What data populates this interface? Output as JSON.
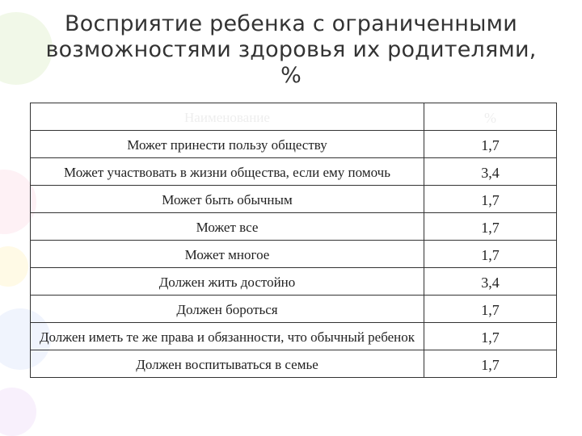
{
  "title": "Восприятие ребенка с ограниченными\nвозможностями здоровья их родителями,\n%",
  "table": {
    "header": [
      "Наименование",
      "%"
    ],
    "rows": [
      [
        "Может принести пользу обществу",
        "1,7"
      ],
      [
        "Может участвовать в жизни общества, если ему помочь",
        "3,4"
      ],
      [
        "Может быть обычным",
        "1,7"
      ],
      [
        "Может все",
        "1,7"
      ],
      [
        "Может многое",
        "1,7"
      ],
      [
        "Должен жить достойно",
        "3,4"
      ],
      [
        "Должен бороться",
        "1,7"
      ],
      [
        "Должен иметь те же права и обязанности, что обычный ребенок",
        "1,7"
      ],
      [
        "Должен воспитываться в семье",
        "1,7"
      ]
    ]
  }
}
